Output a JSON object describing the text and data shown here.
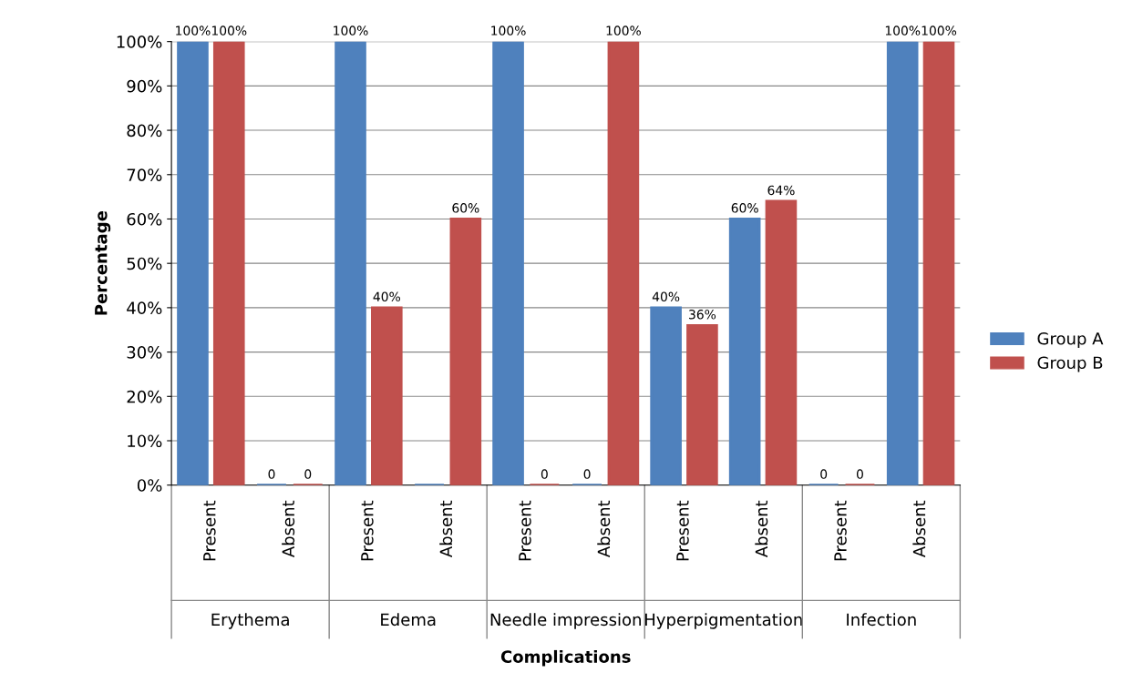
{
  "chart_data": {
    "type": "bar",
    "ylabel": "Percentage",
    "categories": [
      "Present",
      "Absent",
      "Present",
      "Absent",
      "Present",
      "Absent",
      "Present",
      "Absent",
      "Present",
      "Absent"
    ],
    "annotations": [
      "Erythema",
      "Edema",
      "Needle impression",
      "Hyperpigmentation",
      "Infection",
      "Complications"
    ],
    "series": [
      {
        "name": "Group A",
        "color": "#4f81bd",
        "values": [
          100,
          0,
          100,
          0,
          100,
          0,
          40,
          60,
          0,
          100
        ],
        "value_labels": [
          "100%",
          "0",
          "100%",
          null,
          "100%",
          "0",
          "40%",
          "60%",
          "0",
          "100%"
        ]
      },
      {
        "name": "Group B",
        "color": "#c0504d",
        "values": [
          100,
          0,
          40,
          60,
          0,
          100,
          36,
          64,
          0,
          100
        ],
        "value_labels": [
          "100%",
          "0",
          "40%",
          "60%",
          "0",
          "100%",
          "36%",
          "64%",
          "0",
          "100%"
        ]
      }
    ],
    "ylim": [
      0,
      100
    ],
    "yticks": [
      {
        "value": 0,
        "label": "0%"
      },
      {
        "value": 10,
        "label": "10%"
      },
      {
        "value": 20,
        "label": "20%"
      },
      {
        "value": 30,
        "label": "30%"
      },
      {
        "value": 40,
        "label": "40%"
      },
      {
        "value": 50,
        "label": "50%"
      },
      {
        "value": 60,
        "label": "60%"
      },
      {
        "value": 70,
        "label": "70%"
      },
      {
        "value": 80,
        "label": "80%"
      },
      {
        "value": 90,
        "label": "90%"
      },
      {
        "value": 100,
        "label": "100%"
      }
    ],
    "grid": "y",
    "legend": "right"
  }
}
